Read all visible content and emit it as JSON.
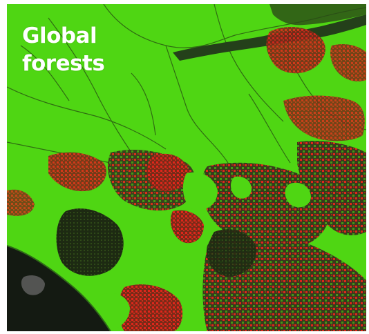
{
  "map": {
    "title": "Global\nforests",
    "colors": {
      "forest": "#4fd613",
      "forest_loss": "#e0261b",
      "non_forest": "#1a2410",
      "water": "#1c2d12",
      "background": "#ffffff",
      "title_text": "#ffffff"
    }
  }
}
